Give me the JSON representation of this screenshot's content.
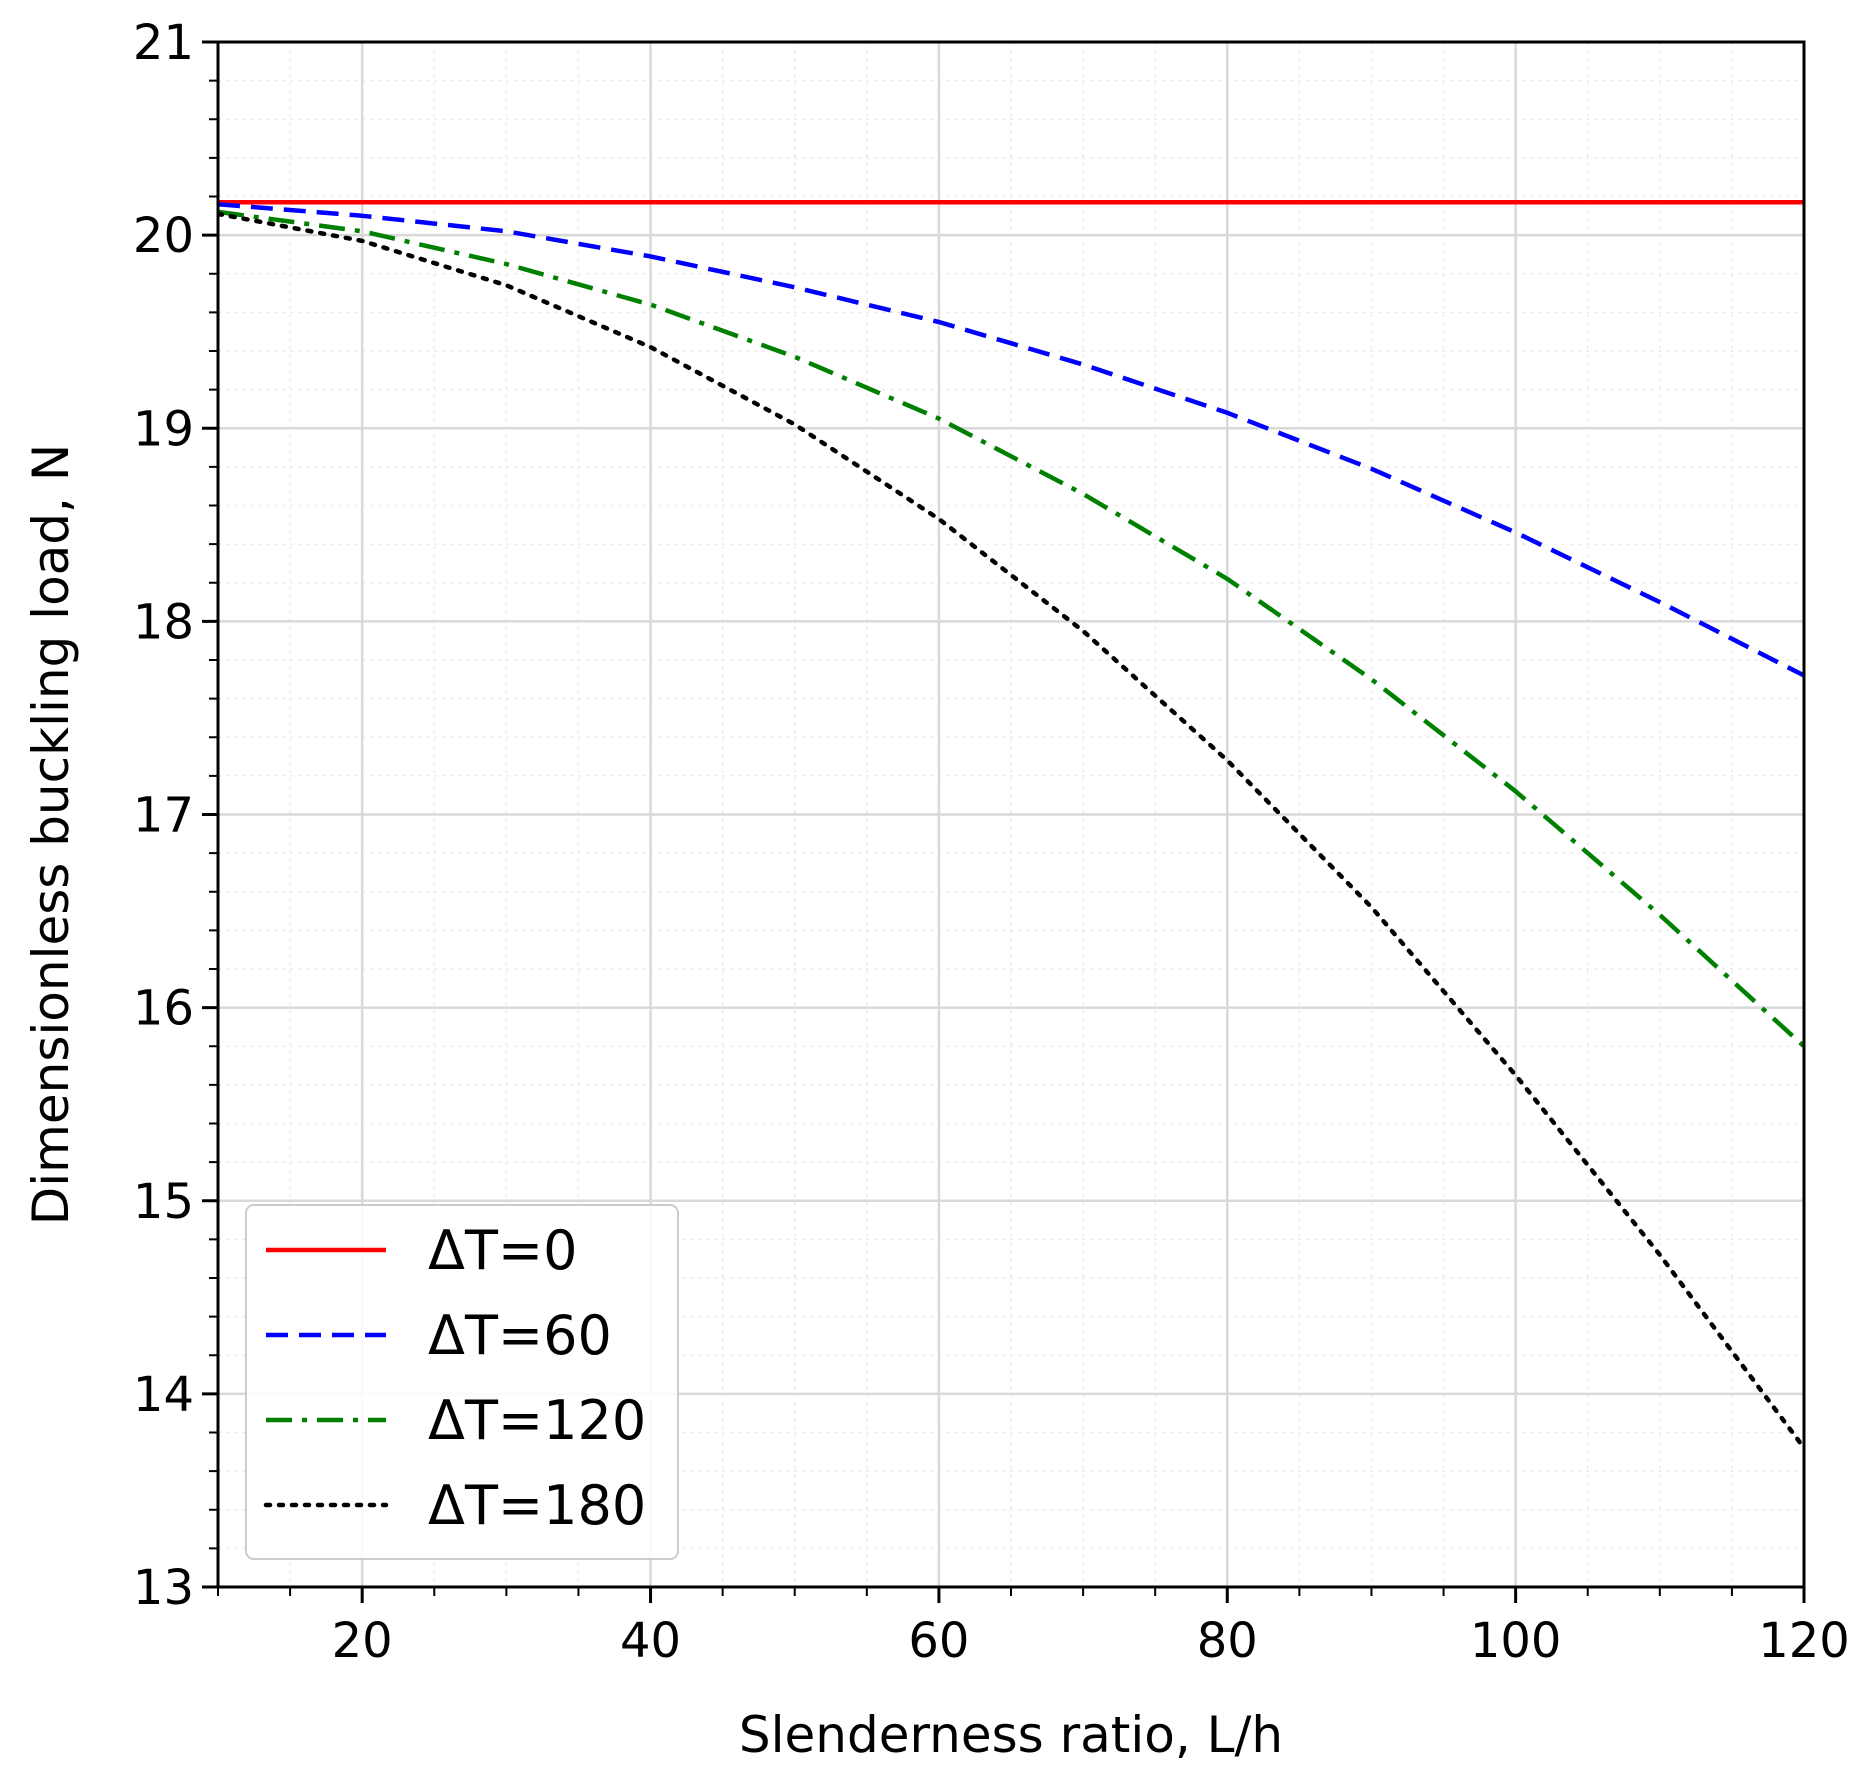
{
  "chart_data": {
    "type": "line",
    "title": "",
    "xlabel": "Slenderness ratio, L/h",
    "ylabel": "Dimensionless buckling load, N",
    "xlim": [
      10,
      120
    ],
    "ylim": [
      13,
      21
    ],
    "xticks": [
      20,
      40,
      60,
      80,
      100,
      120
    ],
    "yticks": [
      13,
      14,
      15,
      16,
      17,
      18,
      19,
      20,
      21
    ],
    "grid": true,
    "legend_position": "lower-left",
    "series": [
      {
        "name": "ΔT=0",
        "color": "#ff0000",
        "style": "solid",
        "x": [
          10,
          20,
          40,
          60,
          80,
          100,
          120
        ],
        "y": [
          20.17,
          20.17,
          20.17,
          20.17,
          20.17,
          20.17,
          20.17
        ]
      },
      {
        "name": "ΔT=60",
        "color": "#0000ff",
        "style": "dashed",
        "x": [
          10,
          20,
          30,
          40,
          50,
          60,
          70,
          80,
          90,
          100,
          110,
          120
        ],
        "y": [
          20.16,
          20.1,
          20.02,
          19.89,
          19.73,
          19.55,
          19.33,
          19.08,
          18.79,
          18.46,
          18.1,
          17.72
        ]
      },
      {
        "name": "ΔT=120",
        "color": "#008000",
        "style": "dashdot",
        "x": [
          10,
          20,
          30,
          40,
          50,
          60,
          70,
          80,
          90,
          100,
          110,
          120
        ],
        "y": [
          20.12,
          20.02,
          19.85,
          19.64,
          19.37,
          19.05,
          18.66,
          18.22,
          17.7,
          17.12,
          16.48,
          15.8
        ]
      },
      {
        "name": "ΔT=180",
        "color": "#000000",
        "style": "dotted",
        "x": [
          10,
          20,
          30,
          40,
          50,
          60,
          70,
          80,
          90,
          100,
          110,
          120
        ],
        "y": [
          20.11,
          19.97,
          19.74,
          19.42,
          19.02,
          18.53,
          17.95,
          17.28,
          16.52,
          15.65,
          14.72,
          13.72
        ]
      }
    ]
  }
}
